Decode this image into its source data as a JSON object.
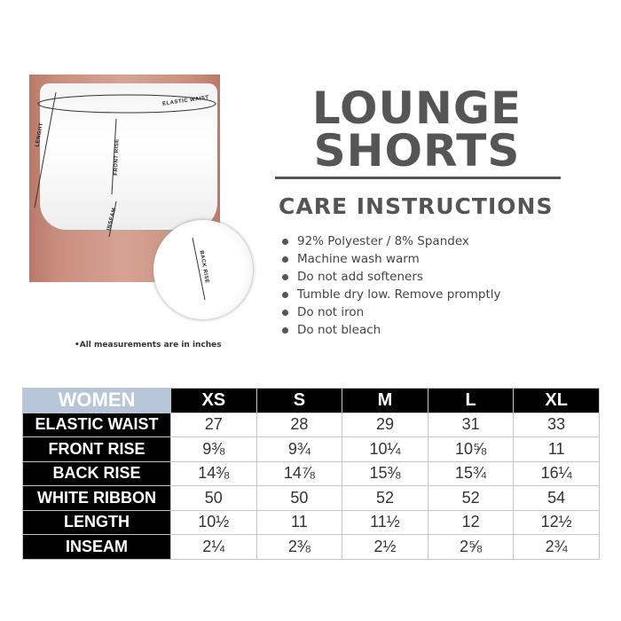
{
  "product_image": {
    "labels": {
      "elastic_waist": "ELASTIC WAIST",
      "length": "LENGHT",
      "front_rise": "FRONT RISE",
      "inseam": "INSEAM",
      "back_rise": "BACK RISE"
    },
    "note": "•All measurements are in inches"
  },
  "title": {
    "line1": "LOUNGE",
    "line2": "SHORTS"
  },
  "care": {
    "heading": "CARE INSTRUCTIONS",
    "items": [
      "92% Polyester / 8% Spandex",
      "Machine wash warm",
      "Do not add softeners",
      "Tumble dry low. Remove promptly",
      "Do not iron",
      "Do not bleach"
    ]
  },
  "size_table": {
    "corner": "WOMEN",
    "sizes": [
      "XS",
      "S",
      "M",
      "L",
      "XL"
    ],
    "rows": [
      {
        "label": "ELASTIC WAIST",
        "values": [
          "27",
          "28",
          "29",
          "31",
          "33"
        ]
      },
      {
        "label": "FRONT RISE",
        "values": [
          "9⅜",
          "9¾",
          "10¼",
          "10⅝",
          "11"
        ]
      },
      {
        "label": "BACK RISE",
        "values": [
          "14⅜",
          "14⅞",
          "15⅜",
          "15¾",
          "16¼"
        ]
      },
      {
        "label": "WHITE RIBBON",
        "values": [
          "50",
          "50",
          "52",
          "52",
          "54"
        ]
      },
      {
        "label": "LENGTH",
        "values": [
          "10½",
          "11",
          "11½",
          "12",
          "12½"
        ]
      },
      {
        "label": "INSEAM",
        "values": [
          "2¼",
          "2⅜",
          "2½",
          "2⅝",
          "2¾"
        ]
      }
    ]
  },
  "colors": {
    "corner_bg": "#b8c6d9",
    "header_bg": "#000000",
    "title_gray": "#555555"
  }
}
